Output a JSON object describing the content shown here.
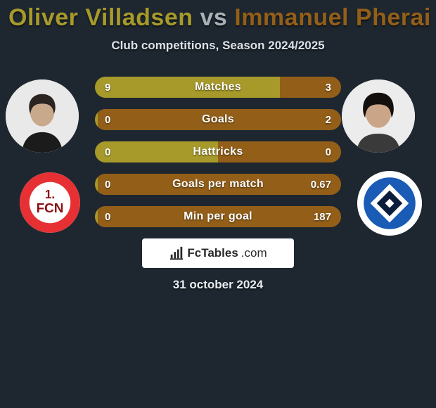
{
  "title": {
    "player1": "Oliver Villadsen",
    "vs": "vs",
    "player2": "Immanuel Pherai"
  },
  "subtitle": "Club competitions, Season 2024/2025",
  "colors": {
    "player1": "#a79a2b",
    "player2": "#935f18",
    "background": "#1e2730"
  },
  "stats": [
    {
      "label": "Matches",
      "left_value": "9",
      "right_value": "3",
      "left_raw": 9,
      "right_raw": 3
    },
    {
      "label": "Goals",
      "left_value": "0",
      "right_value": "2",
      "left_raw": 0,
      "right_raw": 2
    },
    {
      "label": "Hattricks",
      "left_value": "0",
      "right_value": "0",
      "left_raw": 0,
      "right_raw": 0
    },
    {
      "label": "Goals per match",
      "left_value": "0",
      "right_value": "0.67",
      "left_raw": 0,
      "right_raw": 0.67
    },
    {
      "label": "Min per goal",
      "left_value": "0",
      "right_value": "187",
      "left_raw": 0,
      "right_raw": 187
    }
  ],
  "clubs": {
    "left": {
      "name": "1. FCN",
      "bg": "#e63033",
      "text": "#ffffff"
    },
    "right": {
      "name": "HSV",
      "bg": "#ffffff",
      "accent1": "#195bb5",
      "accent2": "#0b1d3a"
    }
  },
  "source": {
    "name": "FcTables",
    "suffix": ".com"
  },
  "date": "31 october 2024"
}
